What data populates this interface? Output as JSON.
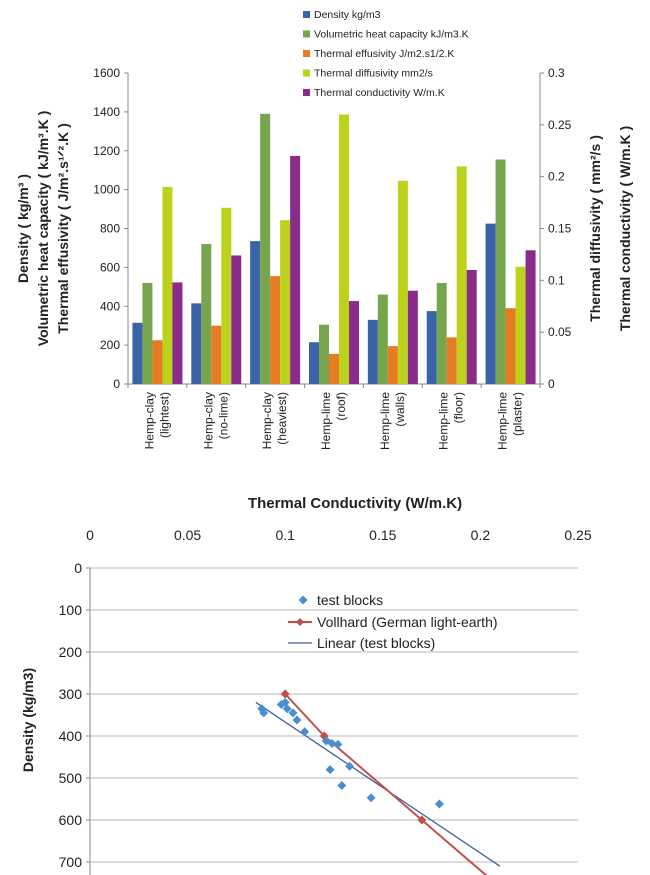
{
  "chart_data": [
    {
      "type": "bar",
      "categories": [
        [
          "Hemp-clay",
          "(lightest)"
        ],
        [
          "Hemp-clay",
          "(no-lime)"
        ],
        [
          "Hemp-clay",
          "(heaviest)"
        ],
        [
          "Hemp-lime",
          "(roof)"
        ],
        [
          "Hemp-lime",
          "(walls)"
        ],
        [
          "Hemp-lime",
          "(floor)"
        ],
        [
          "Hemp-lime",
          "(plaster)"
        ]
      ],
      "series": [
        {
          "name": "Density kg/m3",
          "axis": "left",
          "color": "#3a64a8",
          "values": [
            315,
            415,
            735,
            215,
            330,
            375,
            825
          ]
        },
        {
          "name": "Volumetric heat capacity kJ/m3.K",
          "axis": "left",
          "color": "#77a54e",
          "values": [
            520,
            720,
            1390,
            305,
            460,
            520,
            1155
          ]
        },
        {
          "name": "Thermal effusivity J/m2.s1/2.K",
          "axis": "left",
          "color": "#e57c24",
          "values": [
            225,
            300,
            555,
            155,
            195,
            240,
            390
          ]
        },
        {
          "name": "Thermal diffusivity mm2/s",
          "axis": "right",
          "color": "#bcd21c",
          "values": [
            0.19,
            0.17,
            0.158,
            0.26,
            0.196,
            0.21,
            0.113
          ]
        },
        {
          "name": "Thermal conductivity W/m.K",
          "axis": "right",
          "color": "#8a2d8a",
          "values": [
            0.098,
            0.124,
            0.22,
            0.08,
            0.09,
            0.11,
            0.129
          ]
        }
      ],
      "y_left": {
        "ylim": [
          0,
          1600
        ],
        "ticks": [
          "0",
          "200",
          "400",
          "600",
          "800",
          "1000",
          "1200",
          "1400",
          "1600"
        ]
      },
      "y_right": {
        "ylim": [
          0,
          0.3
        ],
        "ticks": [
          "0",
          "0.05",
          "0.1",
          "0.15",
          "0.2",
          "0.25",
          "0.3"
        ]
      },
      "ylabel_left": [
        "Density  ( kg/m³ )",
        "Volumetric heat capacity  ( kJ/m³.K )",
        "Thermal effusivity  ( J/m².s¹ᐟ².K )"
      ],
      "ylabel_right": [
        "Thermal diffusivity  ( mm²/s )",
        "Thermal conductivity  ( W/m.K )"
      ],
      "legend_position": "top"
    },
    {
      "type": "scatter",
      "title": "Thermal Conductivity (W/m.K)",
      "ylabel": "Density  (kg/m3)",
      "xlim": [
        0,
        0.25
      ],
      "ylim": [
        0,
        700
      ],
      "y_inverted": true,
      "x_axis_position": "top",
      "x_ticks": [
        "0",
        "0.05",
        "0.1",
        "0.15",
        "0.2",
        "0.25"
      ],
      "y_ticks": [
        "0",
        "100",
        "200",
        "300",
        "400",
        "500",
        "600",
        "700"
      ],
      "legend_position": "top-center",
      "series": [
        {
          "name": "test blocks",
          "kind": "points",
          "marker": "diamond",
          "color": "#4a8ed0",
          "points": [
            [
              0.088,
              335
            ],
            [
              0.089,
              345
            ],
            [
              0.098,
              325
            ],
            [
              0.1,
              320
            ],
            [
              0.101,
              335
            ],
            [
              0.104,
              345
            ],
            [
              0.106,
              362
            ],
            [
              0.11,
              390
            ],
            [
              0.121,
              412
            ],
            [
              0.123,
              480
            ],
            [
              0.124,
              418
            ],
            [
              0.127,
              420
            ],
            [
              0.129,
              518
            ],
            [
              0.133,
              472
            ],
            [
              0.144,
              547
            ],
            [
              0.179,
              562
            ]
          ]
        },
        {
          "name": "Vollhard (German light-earth)",
          "kind": "line_markers",
          "marker": "diamond",
          "color": "#c0504d",
          "points": [
            [
              0.1,
              300
            ],
            [
              0.12,
              400
            ],
            [
              0.17,
              600
            ],
            [
              0.22,
              800
            ]
          ]
        },
        {
          "name": "Linear (test blocks)",
          "kind": "line",
          "color": "#3f5f9e",
          "points": [
            [
              0.085,
              320
            ],
            [
              0.21,
              710
            ]
          ]
        }
      ]
    }
  ]
}
